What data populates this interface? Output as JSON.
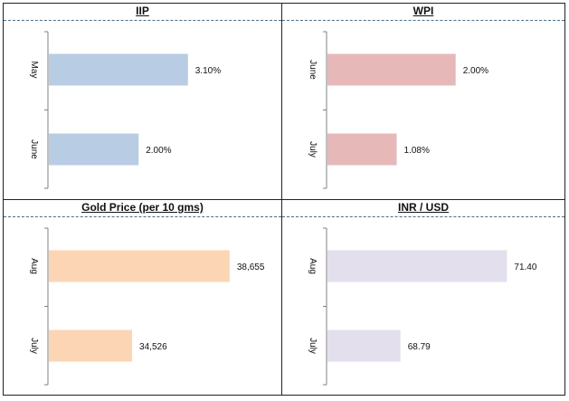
{
  "chart_data": [
    {
      "type": "bar",
      "orientation": "horizontal",
      "title": "IIP",
      "categories": [
        "May",
        "June"
      ],
      "values": [
        3.1,
        2.0
      ],
      "value_labels": [
        "3.10%",
        "2.00%"
      ],
      "xlim": [
        0,
        5
      ],
      "color": "#b8cce4"
    },
    {
      "type": "bar",
      "orientation": "horizontal",
      "title": "WPI",
      "categories": [
        "June",
        "July"
      ],
      "values": [
        2.0,
        1.08
      ],
      "value_labels": [
        "2.00%",
        "1.08%"
      ],
      "xlim": [
        0,
        3.5
      ],
      "color": "#e6b9b8"
    },
    {
      "type": "bar",
      "orientation": "horizontal",
      "title": "Gold Price (per 10 gms)",
      "categories": [
        "Aug",
        "July"
      ],
      "values": [
        38655,
        34526
      ],
      "value_labels": [
        "38,655",
        "34,526"
      ],
      "xlim": [
        31000,
        40500
      ],
      "color": "#fcd5b5"
    },
    {
      "type": "bar",
      "orientation": "horizontal",
      "title": "INR / USD",
      "categories": [
        "Aug",
        "July"
      ],
      "values": [
        71.4,
        68.79
      ],
      "value_labels": [
        "71.40",
        "68.79"
      ],
      "xlim": [
        67,
        72.5
      ],
      "color": "#e4dfec"
    }
  ]
}
